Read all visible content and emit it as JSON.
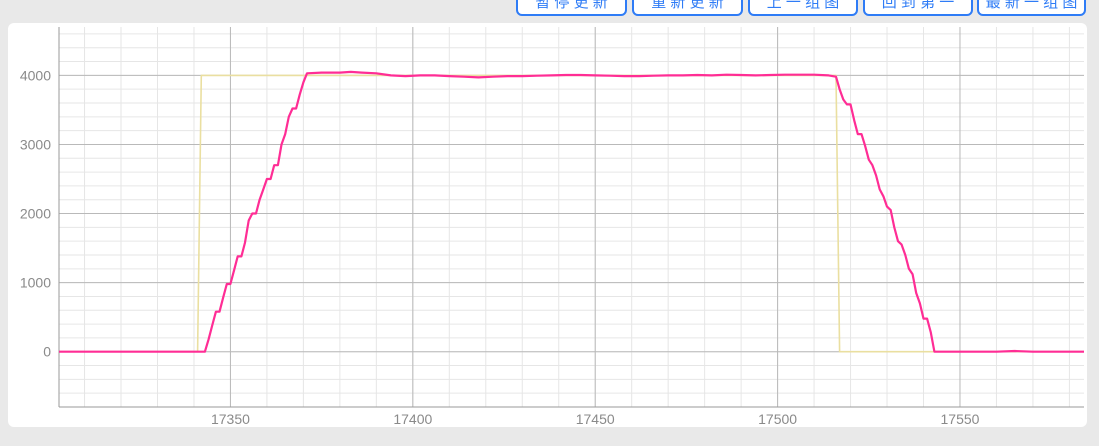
{
  "toolbar": {
    "buttons": [
      {
        "label": "暂 停 更 新"
      },
      {
        "label": "重 新 更 新"
      },
      {
        "label": "上 一 组 图"
      },
      {
        "label": "回 到 第 一"
      },
      {
        "label": "最 新 一 组 图"
      }
    ]
  },
  "colors": {
    "accent": "#2f7cf6",
    "grid_major": "#b9b9b9",
    "grid_minor": "#e6e6e6",
    "series_target": "#eadfa0",
    "series_actual": "#ff2d95"
  },
  "chart_data": {
    "type": "line",
    "title": "",
    "xlabel": "",
    "ylabel": "",
    "xlim": [
      17303,
      17584
    ],
    "ylim": [
      -800,
      4700
    ],
    "x_ticks": [
      17350,
      17400,
      17450,
      17500,
      17550
    ],
    "y_ticks": [
      0,
      1000,
      2000,
      3000,
      4000
    ],
    "grid": true,
    "legend": "none",
    "series": [
      {
        "color": "#eadfa0",
        "points": [
          [
            17303,
            0
          ],
          [
            17341,
            0
          ],
          [
            17342,
            4000
          ],
          [
            17516,
            4000
          ],
          [
            17517,
            0
          ],
          [
            17584,
            0
          ]
        ]
      },
      {
        "color": "#ff2d95",
        "points": [
          [
            17303,
            0
          ],
          [
            17341,
            0
          ],
          [
            17343,
            0
          ],
          [
            17344,
            180
          ],
          [
            17345,
            380
          ],
          [
            17346,
            580
          ],
          [
            17347,
            580
          ],
          [
            17348,
            780
          ],
          [
            17349,
            980
          ],
          [
            17350,
            980
          ],
          [
            17351,
            1180
          ],
          [
            17352,
            1380
          ],
          [
            17353,
            1380
          ],
          [
            17354,
            1580
          ],
          [
            17355,
            1900
          ],
          [
            17356,
            2000
          ],
          [
            17357,
            2000
          ],
          [
            17358,
            2200
          ],
          [
            17359,
            2350
          ],
          [
            17360,
            2500
          ],
          [
            17361,
            2500
          ],
          [
            17362,
            2700
          ],
          [
            17363,
            2700
          ],
          [
            17364,
            3000
          ],
          [
            17365,
            3150
          ],
          [
            17366,
            3400
          ],
          [
            17367,
            3520
          ],
          [
            17368,
            3520
          ],
          [
            17369,
            3720
          ],
          [
            17370,
            3900
          ],
          [
            17371,
            4030
          ],
          [
            17375,
            4040
          ],
          [
            17380,
            4040
          ],
          [
            17383,
            4050
          ],
          [
            17386,
            4040
          ],
          [
            17390,
            4030
          ],
          [
            17394,
            4000
          ],
          [
            17398,
            3990
          ],
          [
            17402,
            4000
          ],
          [
            17406,
            4000
          ],
          [
            17410,
            3990
          ],
          [
            17414,
            3980
          ],
          [
            17418,
            3970
          ],
          [
            17422,
            3980
          ],
          [
            17426,
            3990
          ],
          [
            17430,
            3990
          ],
          [
            17434,
            3995
          ],
          [
            17438,
            4000
          ],
          [
            17442,
            4005
          ],
          [
            17446,
            4005
          ],
          [
            17450,
            4000
          ],
          [
            17454,
            3995
          ],
          [
            17458,
            3990
          ],
          [
            17462,
            3990
          ],
          [
            17466,
            3995
          ],
          [
            17470,
            4000
          ],
          [
            17474,
            4000
          ],
          [
            17478,
            4005
          ],
          [
            17482,
            4000
          ],
          [
            17486,
            4010
          ],
          [
            17490,
            4005
          ],
          [
            17494,
            4000
          ],
          [
            17498,
            4005
          ],
          [
            17502,
            4010
          ],
          [
            17506,
            4010
          ],
          [
            17510,
            4010
          ],
          [
            17514,
            4000
          ],
          [
            17516,
            3980
          ],
          [
            17517,
            3800
          ],
          [
            17518,
            3650
          ],
          [
            17519,
            3580
          ],
          [
            17520,
            3580
          ],
          [
            17521,
            3350
          ],
          [
            17522,
            3150
          ],
          [
            17523,
            3150
          ],
          [
            17524,
            2980
          ],
          [
            17525,
            2780
          ],
          [
            17526,
            2700
          ],
          [
            17527,
            2550
          ],
          [
            17528,
            2350
          ],
          [
            17529,
            2250
          ],
          [
            17530,
            2100
          ],
          [
            17531,
            2050
          ],
          [
            17532,
            1800
          ],
          [
            17533,
            1600
          ],
          [
            17534,
            1550
          ],
          [
            17535,
            1400
          ],
          [
            17536,
            1200
          ],
          [
            17537,
            1120
          ],
          [
            17538,
            850
          ],
          [
            17539,
            700
          ],
          [
            17540,
            480
          ],
          [
            17541,
            480
          ],
          [
            17542,
            280
          ],
          [
            17543,
            0
          ],
          [
            17550,
            0
          ],
          [
            17560,
            0
          ],
          [
            17565,
            10
          ],
          [
            17570,
            0
          ],
          [
            17584,
            0
          ]
        ]
      }
    ]
  }
}
